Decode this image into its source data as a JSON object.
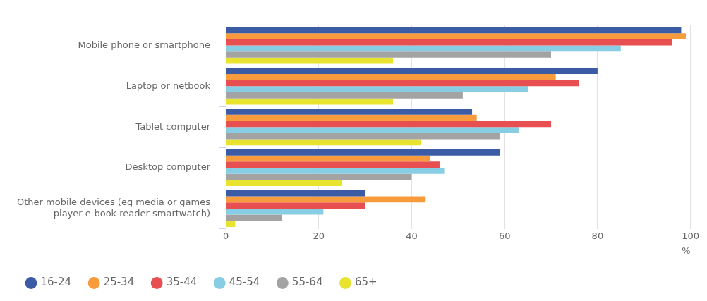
{
  "chart_data": {
    "type": "bar",
    "orientation": "horizontal",
    "xlabel": "%",
    "categories": [
      "Mobile phone or smartphone",
      "Laptop or netbook",
      "Tablet computer",
      "Desktop computer",
      "Other mobile devices (eg media or games player e-book reader smartwatch)"
    ],
    "series": [
      {
        "name": "16-24",
        "color": "#3b5ba5",
        "values": [
          98,
          80,
          53,
          59,
          30
        ]
      },
      {
        "name": "25-34",
        "color": "#f79b3d",
        "values": [
          99,
          71,
          54,
          44,
          43
        ]
      },
      {
        "name": "35-44",
        "color": "#e84f51",
        "values": [
          96,
          76,
          70,
          46,
          30
        ]
      },
      {
        "name": "45-54",
        "color": "#87cde4",
        "values": [
          85,
          65,
          63,
          47,
          21
        ]
      },
      {
        "name": "55-64",
        "color": "#a3a3a3",
        "values": [
          70,
          51,
          59,
          40,
          12
        ]
      },
      {
        "name": "65+",
        "color": "#e8e32e",
        "values": [
          36,
          36,
          42,
          25,
          2
        ]
      }
    ],
    "xlim": [
      0,
      100
    ],
    "xticks": [
      0,
      20,
      40,
      60,
      80,
      100
    ],
    "grid": "x",
    "legend": "bottom left"
  }
}
